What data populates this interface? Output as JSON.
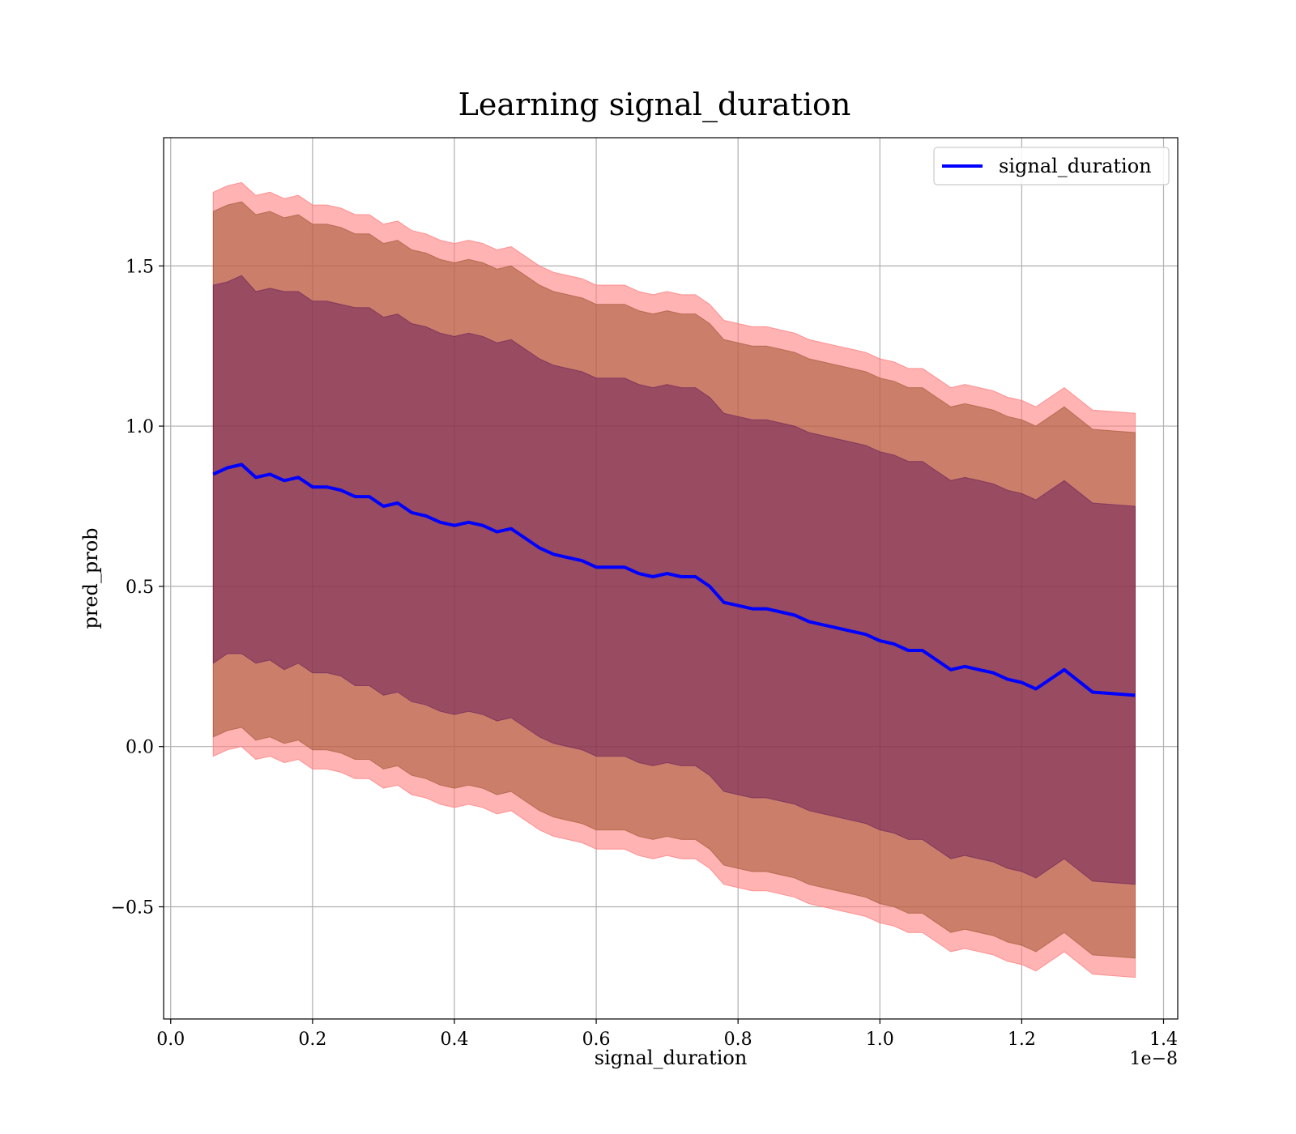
{
  "chart_data": {
    "type": "area",
    "title": "Learning signal_duration",
    "xlabel": "signal_duration",
    "ylabel": "pred_prob",
    "x_offset_label": "1e−8",
    "x_ticks": [
      0.0,
      0.2,
      0.4,
      0.6,
      0.8,
      1.0,
      1.2,
      1.4
    ],
    "x_tick_labels": [
      "0.0",
      "0.2",
      "0.4",
      "0.6",
      "0.8",
      "1.0",
      "1.2",
      "1.4"
    ],
    "y_ticks": [
      -0.5,
      0.0,
      0.5,
      1.0,
      1.5
    ],
    "y_tick_labels": [
      "−0.5",
      "0.0",
      "0.5",
      "1.0",
      "1.5"
    ],
    "xlim": [
      -0.01,
      1.42
    ],
    "ylim": [
      -0.85,
      1.9
    ],
    "grid": true,
    "legend": {
      "position": "top-right",
      "entries": [
        "signal_duration"
      ]
    },
    "colors": {
      "line": "#0000ff",
      "band_outer": "#ff8080",
      "band_middle": "#a0522d",
      "band_inner": "#4b0055"
    },
    "x": [
      0.06,
      0.08,
      0.1,
      0.12,
      0.14,
      0.16,
      0.18,
      0.2,
      0.22,
      0.24,
      0.26,
      0.28,
      0.3,
      0.32,
      0.34,
      0.36,
      0.38,
      0.4,
      0.42,
      0.44,
      0.46,
      0.48,
      0.5,
      0.52,
      0.54,
      0.56,
      0.58,
      0.6,
      0.62,
      0.64,
      0.66,
      0.68,
      0.7,
      0.72,
      0.74,
      0.76,
      0.78,
      0.8,
      0.82,
      0.84,
      0.86,
      0.88,
      0.9,
      0.92,
      0.94,
      0.96,
      0.98,
      1.0,
      1.02,
      1.04,
      1.06,
      1.08,
      1.1,
      1.12,
      1.14,
      1.16,
      1.18,
      1.2,
      1.22,
      1.26,
      1.3,
      1.36
    ],
    "series": [
      {
        "name": "signal_duration",
        "values": [
          0.85,
          0.87,
          0.88,
          0.84,
          0.85,
          0.83,
          0.84,
          0.81,
          0.81,
          0.8,
          0.78,
          0.78,
          0.75,
          0.76,
          0.73,
          0.72,
          0.7,
          0.69,
          0.7,
          0.69,
          0.67,
          0.68,
          0.65,
          0.62,
          0.6,
          0.59,
          0.58,
          0.56,
          0.56,
          0.56,
          0.54,
          0.53,
          0.54,
          0.53,
          0.53,
          0.5,
          0.45,
          0.44,
          0.43,
          0.43,
          0.42,
          0.41,
          0.39,
          0.38,
          0.37,
          0.36,
          0.35,
          0.33,
          0.32,
          0.3,
          0.3,
          0.27,
          0.24,
          0.25,
          0.24,
          0.23,
          0.21,
          0.2,
          0.18,
          0.24,
          0.17,
          0.16
        ],
        "band_1sd": [
          0.59,
          0.58,
          0.59,
          0.58,
          0.58,
          0.59,
          0.58,
          0.58,
          0.58,
          0.58,
          0.59,
          0.59,
          0.59,
          0.59,
          0.59,
          0.59,
          0.59,
          0.59,
          0.59,
          0.59,
          0.59,
          0.59,
          0.59,
          0.59,
          0.59,
          0.59,
          0.59,
          0.59,
          0.59,
          0.59,
          0.59,
          0.59,
          0.59,
          0.59,
          0.59,
          0.59,
          0.59,
          0.59,
          0.59,
          0.59,
          0.59,
          0.59,
          0.59,
          0.59,
          0.59,
          0.59,
          0.59,
          0.59,
          0.59,
          0.59,
          0.59,
          0.59,
          0.59,
          0.59,
          0.59,
          0.59,
          0.59,
          0.59,
          0.59,
          0.59,
          0.59,
          0.59
        ],
        "band_2sd": [
          0.82,
          0.82,
          0.82,
          0.82,
          0.82,
          0.82,
          0.82,
          0.82,
          0.82,
          0.82,
          0.82,
          0.82,
          0.82,
          0.82,
          0.82,
          0.82,
          0.82,
          0.82,
          0.82,
          0.82,
          0.82,
          0.82,
          0.82,
          0.82,
          0.82,
          0.82,
          0.82,
          0.82,
          0.82,
          0.82,
          0.82,
          0.82,
          0.82,
          0.82,
          0.82,
          0.82,
          0.82,
          0.82,
          0.82,
          0.82,
          0.82,
          0.82,
          0.82,
          0.82,
          0.82,
          0.82,
          0.82,
          0.82,
          0.82,
          0.82,
          0.82,
          0.82,
          0.82,
          0.82,
          0.82,
          0.82,
          0.82,
          0.82,
          0.82,
          0.82,
          0.82,
          0.82
        ],
        "band_3sd": [
          0.88,
          0.88,
          0.88,
          0.88,
          0.88,
          0.88,
          0.88,
          0.88,
          0.88,
          0.88,
          0.88,
          0.88,
          0.88,
          0.88,
          0.88,
          0.88,
          0.88,
          0.88,
          0.88,
          0.88,
          0.88,
          0.88,
          0.88,
          0.88,
          0.88,
          0.88,
          0.88,
          0.88,
          0.88,
          0.88,
          0.88,
          0.88,
          0.88,
          0.88,
          0.88,
          0.88,
          0.88,
          0.88,
          0.88,
          0.88,
          0.88,
          0.88,
          0.88,
          0.88,
          0.88,
          0.88,
          0.88,
          0.88,
          0.88,
          0.88,
          0.88,
          0.88,
          0.88,
          0.88,
          0.88,
          0.88,
          0.88,
          0.88,
          0.88,
          0.88,
          0.88,
          0.88
        ]
      }
    ]
  }
}
